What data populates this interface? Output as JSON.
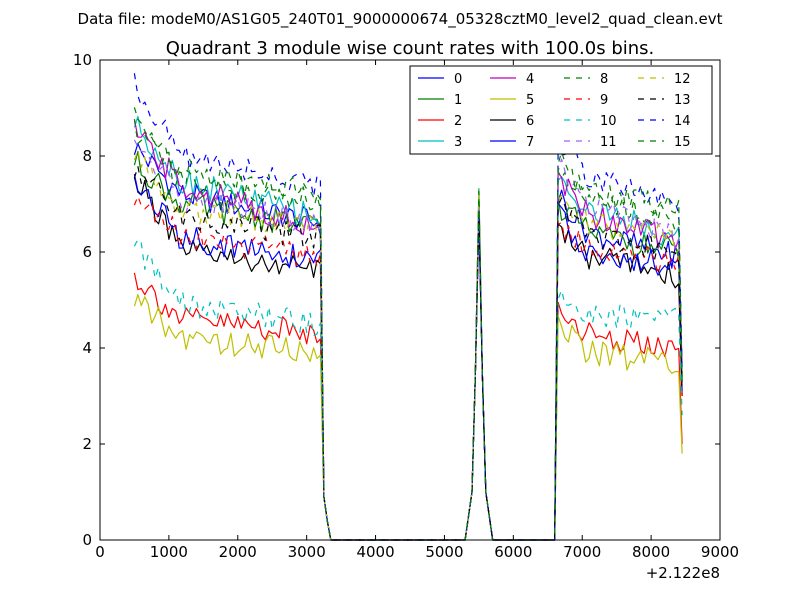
{
  "figure": {
    "suptitle": "Data file: modeM0/AS1G05_240T01_9000000674_05328cztM0_level2_quad_clean.evt"
  },
  "chart_data": {
    "type": "line",
    "title": "Quadrant 3 module wise count rates with 100.0s bins.",
    "xlabel": "",
    "ylabel": "",
    "x_offset_label": "+2.122e8",
    "xlim": [
      0,
      9000
    ],
    "ylim": [
      0,
      10
    ],
    "xticks": [
      0,
      1000,
      2000,
      3000,
      4000,
      5000,
      6000,
      7000,
      8000,
      9000
    ],
    "yticks": [
      0,
      2,
      4,
      6,
      8,
      10
    ],
    "grid": false,
    "legend": {
      "position": "top-right",
      "columns": 4
    },
    "segments": [
      {
        "x_start": 500,
        "x_end": 3200,
        "step": 50
      },
      {
        "x_start": 6650,
        "x_end": 8400,
        "step": 50
      }
    ],
    "gap_points": [
      [
        3250,
        0.9
      ],
      [
        3300,
        0.4
      ],
      [
        3350,
        0.0
      ],
      [
        5300,
        0.0
      ],
      [
        5400,
        1.0
      ],
      [
        5450,
        3.5
      ],
      [
        5500,
        7.0
      ],
      [
        5550,
        3.5
      ],
      [
        5600,
        1.0
      ],
      [
        5700,
        0.0
      ],
      [
        6600,
        0.0
      ]
    ],
    "series": [
      {
        "name": "0",
        "color": "#0000ff",
        "dash": "solid",
        "seg1": [
          8.2,
          7.2,
          6.6
        ],
        "seg2": [
          7.2,
          6.4,
          5.9
        ],
        "end": 3.4
      },
      {
        "name": "1",
        "color": "#008000",
        "dash": "solid",
        "seg1": [
          7.9,
          7.0,
          6.5
        ],
        "seg2": [
          7.0,
          6.4,
          6.0
        ],
        "end": 3.0
      },
      {
        "name": "2",
        "color": "#ff0000",
        "dash": "solid",
        "seg1": [
          5.5,
          4.6,
          4.3
        ],
        "seg2": [
          4.8,
          4.3,
          3.9
        ],
        "end": 2.0
      },
      {
        "name": "3",
        "color": "#00bfbf",
        "dash": "solid",
        "seg1": [
          8.7,
          7.5,
          6.7
        ],
        "seg2": [
          7.6,
          6.9,
          6.3
        ],
        "end": 3.3
      },
      {
        "name": "4",
        "color": "#bf00bf",
        "dash": "solid",
        "seg1": [
          8.5,
          7.4,
          6.5
        ],
        "seg2": [
          7.5,
          6.8,
          6.2
        ],
        "end": 3.6
      },
      {
        "name": "5",
        "color": "#bfbf00",
        "dash": "solid",
        "seg1": [
          5.0,
          4.2,
          3.9
        ],
        "seg2": [
          4.5,
          3.9,
          3.7
        ],
        "end": 1.8
      },
      {
        "name": "6",
        "color": "#000000",
        "dash": "solid",
        "seg1": [
          7.6,
          6.0,
          5.6
        ],
        "seg2": [
          6.5,
          5.9,
          5.5
        ],
        "end": 3.0
      },
      {
        "name": "7",
        "color": "#0000ff",
        "dash": "solid",
        "seg1": [
          7.5,
          6.3,
          5.8
        ],
        "seg2": [
          6.8,
          6.0,
          5.7
        ],
        "end": 3.1
      },
      {
        "name": "8",
        "color": "#008000",
        "dash": "dashed",
        "seg1": [
          8.9,
          7.5,
          7.1
        ],
        "seg2": [
          7.8,
          7.2,
          6.6
        ],
        "end": 3.4
      },
      {
        "name": "9",
        "color": "#ff0000",
        "dash": "dashed",
        "seg1": [
          7.2,
          6.3,
          5.9
        ],
        "seg2": [
          6.6,
          6.1,
          5.7
        ],
        "end": 2.9
      },
      {
        "name": "10",
        "color": "#00bfbf",
        "dash": "dashed",
        "seg1": [
          6.1,
          4.9,
          4.5
        ],
        "seg2": [
          5.1,
          4.7,
          4.6
        ],
        "end": 2.6
      },
      {
        "name": "11",
        "color": "#9f5fff",
        "dash": "dashed",
        "seg1": [
          8.3,
          7.1,
          6.6
        ],
        "seg2": [
          7.9,
          7.0,
          6.3
        ],
        "end": 3.3
      },
      {
        "name": "12",
        "color": "#bfbf00",
        "dash": "dashed",
        "seg1": [
          8.0,
          6.9,
          6.5
        ],
        "seg2": [
          7.2,
          6.6,
          6.2
        ],
        "end": 3.2
      },
      {
        "name": "13",
        "color": "#000000",
        "dash": "dashed",
        "seg1": [
          7.8,
          6.7,
          6.3
        ],
        "seg2": [
          7.0,
          6.4,
          6.0
        ],
        "end": 3.1
      },
      {
        "name": "14",
        "color": "#0000ff",
        "dash": "dashed",
        "seg1": [
          9.5,
          8.0,
          7.4
        ],
        "seg2": [
          8.3,
          7.6,
          7.0
        ],
        "end": 3.5
      },
      {
        "name": "15",
        "color": "#008000",
        "dash": "dashed",
        "seg1": [
          8.6,
          7.7,
          7.2
        ],
        "seg2": [
          7.9,
          7.3,
          6.9
        ],
        "end": 3.3
      }
    ]
  }
}
